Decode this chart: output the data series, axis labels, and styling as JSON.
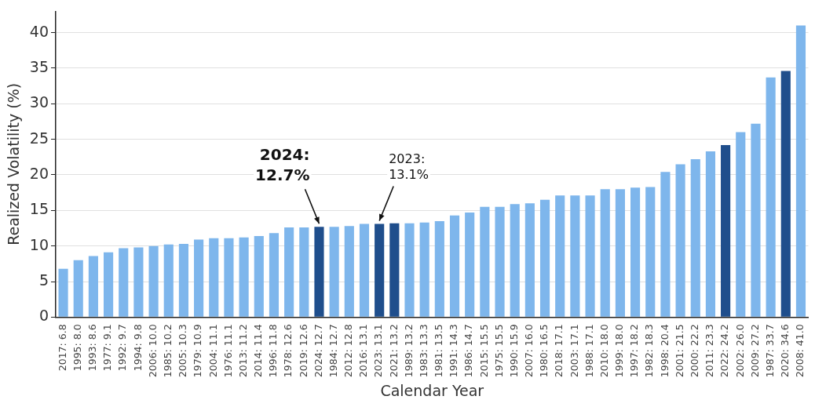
{
  "chart_data": {
    "type": "bar",
    "xlabel": "Calendar Year",
    "ylabel": "Realized Volatility (%)",
    "categories": [
      "2017: 6.8",
      "1995: 8.0",
      "1993: 8.6",
      "1977: 9.1",
      "1992: 9.7",
      "1994: 9.8",
      "2006: 10.0",
      "1985: 10.2",
      "2005: 10.3",
      "1979: 10.9",
      "2004: 11.1",
      "1976: 11.1",
      "2013: 11.2",
      "2014: 11.4",
      "1996: 11.8",
      "1978: 12.6",
      "2019: 12.6",
      "2024: 12.7",
      "1984: 12.7",
      "2012: 12.8",
      "2016: 13.1",
      "2023: 13.1",
      "2021: 13.2",
      "1989: 13.2",
      "1983: 13.3",
      "1981: 13.5",
      "1991: 14.3",
      "1986: 14.7",
      "2015: 15.5",
      "1975: 15.5",
      "1990: 15.9",
      "2007: 16.0",
      "1980: 16.5",
      "2018: 17.1",
      "2003: 17.1",
      "1988: 17.1",
      "2010: 18.0",
      "1999: 18.0",
      "1997: 18.2",
      "1982: 18.3",
      "1998: 20.4",
      "2001: 21.5",
      "2000: 22.2",
      "2011: 23.3",
      "2022: 24.2",
      "2002: 26.0",
      "2009: 27.2",
      "1987: 33.7",
      "2020: 34.6",
      "2008: 41.0"
    ],
    "values": [
      6.8,
      8.0,
      8.6,
      9.1,
      9.7,
      9.8,
      10.0,
      10.2,
      10.3,
      10.9,
      11.1,
      11.1,
      11.2,
      11.4,
      11.8,
      12.6,
      12.6,
      12.7,
      12.7,
      12.8,
      13.1,
      13.1,
      13.2,
      13.2,
      13.3,
      13.5,
      14.3,
      14.7,
      15.5,
      15.5,
      15.9,
      16.0,
      16.5,
      17.1,
      17.1,
      17.1,
      18.0,
      18.0,
      18.2,
      18.3,
      20.4,
      21.5,
      22.2,
      23.3,
      24.2,
      26.0,
      27.2,
      33.7,
      34.6,
      41.0
    ],
    "colors": [
      "#7eb6ec",
      "#7eb6ec",
      "#7eb6ec",
      "#7eb6ec",
      "#7eb6ec",
      "#7eb6ec",
      "#7eb6ec",
      "#7eb6ec",
      "#7eb6ec",
      "#7eb6ec",
      "#7eb6ec",
      "#7eb6ec",
      "#7eb6ec",
      "#7eb6ec",
      "#7eb6ec",
      "#7eb6ec",
      "#7eb6ec",
      "#1f4e8c",
      "#7eb6ec",
      "#7eb6ec",
      "#7eb6ec",
      "#1f4e8c",
      "#1f4e8c",
      "#7eb6ec",
      "#7eb6ec",
      "#7eb6ec",
      "#7eb6ec",
      "#7eb6ec",
      "#7eb6ec",
      "#7eb6ec",
      "#7eb6ec",
      "#7eb6ec",
      "#7eb6ec",
      "#7eb6ec",
      "#7eb6ec",
      "#7eb6ec",
      "#7eb6ec",
      "#7eb6ec",
      "#7eb6ec",
      "#7eb6ec",
      "#7eb6ec",
      "#7eb6ec",
      "#7eb6ec",
      "#7eb6ec",
      "#1f4e8c",
      "#7eb6ec",
      "#7eb6ec",
      "#7eb6ec",
      "#1f4e8c",
      "#7eb6ec"
    ],
    "ylim": [
      0,
      43
    ],
    "yticks": [
      0,
      5,
      10,
      15,
      20,
      25,
      30,
      35,
      40
    ],
    "grid": "y",
    "legend": false,
    "annotations": [
      {
        "text": "2024:\n12.7%",
        "x": "2024: 12.7",
        "y": 12.7
      },
      {
        "text": "2023:\n13.1%",
        "x": "2023: 13.1",
        "y": 13.1
      }
    ]
  }
}
